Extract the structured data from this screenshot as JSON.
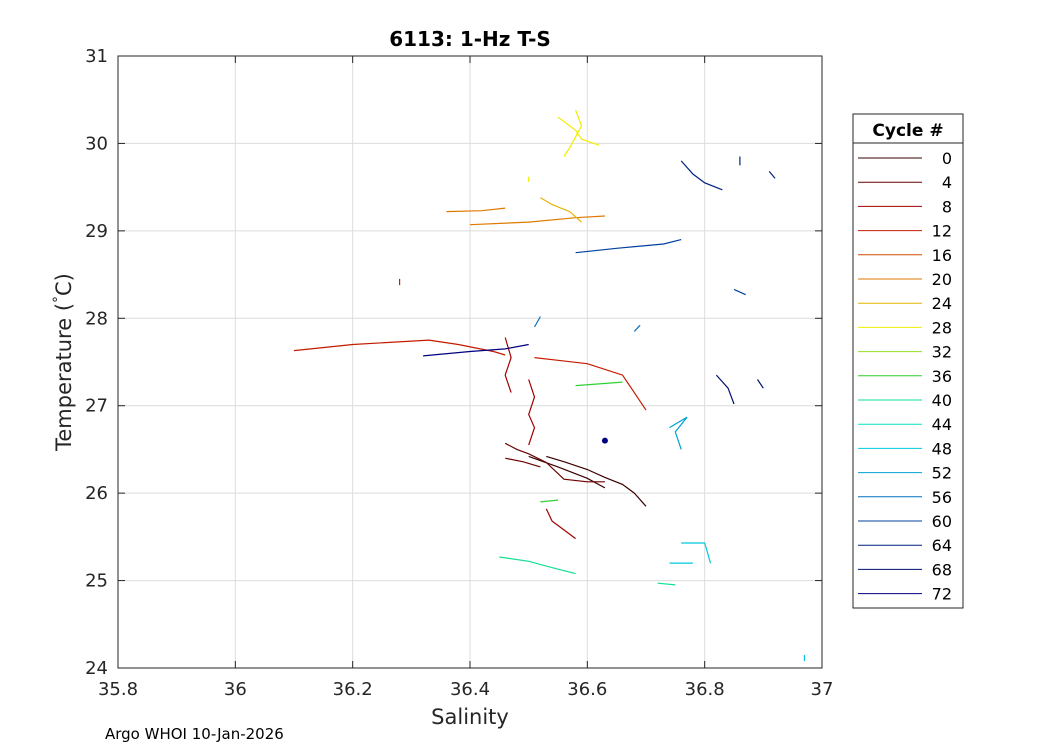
{
  "chart_data": {
    "type": "line",
    "title": "6113: 1-Hz T-S",
    "xlabel": "Salinity",
    "ylabel_main": "Temperature (",
    "ylabel_degree": "°",
    "ylabel_unit": "C)",
    "xlim": [
      35.8,
      37
    ],
    "ylim": [
      24,
      31
    ],
    "x_ticks": [
      35.8,
      36,
      36.2,
      36.4,
      36.6,
      36.8,
      37
    ],
    "x_tick_labels": [
      "35.8",
      "36",
      "36.2",
      "36.4",
      "36.6",
      "36.8",
      "37"
    ],
    "y_ticks": [
      24,
      25,
      26,
      27,
      28,
      29,
      30,
      31
    ],
    "y_tick_labels": [
      "24",
      "25",
      "26",
      "27",
      "28",
      "29",
      "30",
      "31"
    ],
    "grid": true,
    "legend": {
      "title": "Cycle #",
      "placement": "right",
      "entries": [
        {
          "label": "0",
          "color": "#3a0000"
        },
        {
          "label": "4",
          "color": "#6d0000"
        },
        {
          "label": "8",
          "color": "#a30000"
        },
        {
          "label": "12",
          "color": "#c41a00"
        },
        {
          "label": "16",
          "color": "#d24a00"
        },
        {
          "label": "20",
          "color": "#de7a00"
        },
        {
          "label": "24",
          "color": "#e3b500"
        },
        {
          "label": "28",
          "color": "#f0ee00"
        },
        {
          "label": "32",
          "color": "#90e020"
        },
        {
          "label": "36",
          "color": "#30d030"
        },
        {
          "label": "40",
          "color": "#10e090"
        },
        {
          "label": "44",
          "color": "#00e0c8"
        },
        {
          "label": "48",
          "color": "#00c8e0"
        },
        {
          "label": "52",
          "color": "#00a0d0"
        },
        {
          "label": "56",
          "color": "#0070c0"
        },
        {
          "label": "60",
          "color": "#0040a0"
        },
        {
          "label": "64",
          "color": "#002080"
        },
        {
          "label": "68",
          "color": "#001070"
        },
        {
          "label": "72",
          "color": "#000080"
        }
      ]
    },
    "series": [
      {
        "color": "#3a0000",
        "points": [
          [
            36.53,
            26.42
          ],
          [
            36.56,
            26.36
          ],
          [
            36.6,
            26.27
          ],
          [
            36.63,
            26.18
          ],
          [
            36.66,
            26.1
          ],
          [
            36.68,
            26.0
          ],
          [
            36.7,
            25.85
          ]
        ]
      },
      {
        "color": "#3a0000",
        "points": [
          [
            36.5,
            26.42
          ],
          [
            36.55,
            26.3
          ],
          [
            36.6,
            26.17
          ],
          [
            36.63,
            26.06
          ]
        ]
      },
      {
        "color": "#6d0000",
        "points": [
          [
            36.46,
            26.57
          ],
          [
            36.48,
            26.5
          ],
          [
            36.5,
            26.45
          ],
          [
            36.53,
            26.35
          ],
          [
            36.56,
            26.16
          ],
          [
            36.6,
            26.13
          ],
          [
            36.63,
            26.13
          ]
        ]
      },
      {
        "color": "#6d0000",
        "points": [
          [
            36.46,
            26.4
          ],
          [
            36.49,
            26.36
          ],
          [
            36.52,
            26.3
          ]
        ]
      },
      {
        "color": "#a30000",
        "points": [
          [
            36.5,
            27.3
          ],
          [
            36.51,
            27.1
          ],
          [
            36.5,
            26.9
          ],
          [
            36.51,
            26.75
          ],
          [
            36.5,
            26.55
          ]
        ]
      },
      {
        "color": "#a30000",
        "points": [
          [
            36.53,
            25.82
          ],
          [
            36.54,
            25.68
          ],
          [
            36.56,
            25.58
          ],
          [
            36.58,
            25.48
          ]
        ]
      },
      {
        "color": "#a30000",
        "points": [
          [
            36.46,
            27.78
          ],
          [
            36.47,
            27.55
          ],
          [
            36.46,
            27.35
          ],
          [
            36.47,
            27.15
          ]
        ]
      },
      {
        "color": "#c41a00",
        "points": [
          [
            36.28,
            28.45
          ],
          [
            36.28,
            28.38
          ]
        ]
      },
      {
        "color": "#c41a00",
        "points": [
          [
            36.1,
            27.63
          ],
          [
            36.2,
            27.7
          ],
          [
            36.33,
            27.75
          ],
          [
            36.38,
            27.7
          ],
          [
            36.44,
            27.62
          ],
          [
            36.46,
            27.58
          ]
        ]
      },
      {
        "color": "#c41a00",
        "points": [
          [
            36.51,
            27.55
          ],
          [
            36.55,
            27.52
          ],
          [
            36.6,
            27.48
          ],
          [
            36.66,
            27.35
          ],
          [
            36.68,
            27.15
          ],
          [
            36.7,
            26.95
          ]
        ]
      },
      {
        "color": "#de7a00",
        "points": [
          [
            36.36,
            29.22
          ],
          [
            36.42,
            29.23
          ],
          [
            36.46,
            29.26
          ]
        ]
      },
      {
        "color": "#de7a00",
        "points": [
          [
            36.4,
            29.07
          ],
          [
            36.5,
            29.1
          ],
          [
            36.58,
            29.15
          ],
          [
            36.63,
            29.17
          ]
        ]
      },
      {
        "color": "#e3b500",
        "points": [
          [
            36.52,
            29.38
          ],
          [
            36.54,
            29.3
          ],
          [
            36.57,
            29.22
          ],
          [
            36.59,
            29.1
          ]
        ]
      },
      {
        "color": "#f0ee00",
        "points": [
          [
            36.55,
            30.3
          ],
          [
            36.58,
            30.15
          ],
          [
            36.59,
            30.05
          ],
          [
            36.62,
            29.98
          ]
        ]
      },
      {
        "color": "#f0ee00",
        "points": [
          [
            36.58,
            30.38
          ],
          [
            36.59,
            30.2
          ],
          [
            36.57,
            29.95
          ],
          [
            36.56,
            29.85
          ]
        ]
      },
      {
        "color": "#f0ee00",
        "points": [
          [
            36.5,
            29.62
          ],
          [
            36.5,
            29.56
          ]
        ]
      },
      {
        "color": "#30d030",
        "points": [
          [
            36.58,
            27.23
          ],
          [
            36.62,
            27.25
          ],
          [
            36.66,
            27.27
          ]
        ]
      },
      {
        "color": "#30d030",
        "points": [
          [
            36.52,
            25.9
          ],
          [
            36.55,
            25.92
          ]
        ]
      },
      {
        "color": "#10e090",
        "points": [
          [
            36.45,
            25.27
          ],
          [
            36.5,
            25.22
          ],
          [
            36.55,
            25.13
          ],
          [
            36.58,
            25.08
          ]
        ]
      },
      {
        "color": "#10e090",
        "points": [
          [
            36.72,
            24.97
          ],
          [
            36.75,
            24.95
          ]
        ]
      },
      {
        "color": "#00c8e0",
        "points": [
          [
            36.76,
            25.43
          ],
          [
            36.8,
            25.43
          ],
          [
            36.81,
            25.2
          ]
        ]
      },
      {
        "color": "#00c8e0",
        "points": [
          [
            36.74,
            25.2
          ],
          [
            36.78,
            25.2
          ]
        ]
      },
      {
        "color": "#00c8e0",
        "points": [
          [
            36.97,
            24.15
          ],
          [
            36.97,
            24.08
          ]
        ]
      },
      {
        "color": "#00a0d0",
        "points": [
          [
            36.74,
            26.75
          ],
          [
            36.77,
            26.87
          ],
          [
            36.75,
            26.7
          ],
          [
            36.76,
            26.5
          ]
        ]
      },
      {
        "color": "#0070c0",
        "points": [
          [
            36.51,
            27.9
          ],
          [
            36.52,
            28.02
          ]
        ]
      },
      {
        "color": "#0070c0",
        "points": [
          [
            36.68,
            27.85
          ],
          [
            36.69,
            27.92
          ]
        ]
      },
      {
        "color": "#0040a0",
        "points": [
          [
            36.58,
            28.75
          ],
          [
            36.65,
            28.8
          ],
          [
            36.73,
            28.85
          ],
          [
            36.76,
            28.9
          ]
        ]
      },
      {
        "color": "#0040a0",
        "points": [
          [
            36.85,
            28.33
          ],
          [
            36.87,
            28.27
          ]
        ]
      },
      {
        "color": "#002080",
        "points": [
          [
            36.76,
            29.8
          ],
          [
            36.78,
            29.65
          ],
          [
            36.8,
            29.55
          ],
          [
            36.83,
            29.47
          ]
        ]
      },
      {
        "color": "#002080",
        "points": [
          [
            36.86,
            29.85
          ],
          [
            36.86,
            29.75
          ]
        ]
      },
      {
        "color": "#002080",
        "points": [
          [
            36.91,
            29.68
          ],
          [
            36.92,
            29.6
          ]
        ]
      },
      {
        "color": "#001070",
        "points": [
          [
            36.82,
            27.35
          ],
          [
            36.84,
            27.2
          ],
          [
            36.85,
            27.02
          ]
        ]
      },
      {
        "color": "#001070",
        "points": [
          [
            36.89,
            27.3
          ],
          [
            36.9,
            27.2
          ]
        ]
      },
      {
        "color": "#000080",
        "points": [
          [
            36.32,
            27.57
          ],
          [
            36.4,
            27.62
          ],
          [
            36.46,
            27.65
          ],
          [
            36.5,
            27.7
          ]
        ]
      },
      {
        "color": "#000080",
        "points": [
          [
            36.63,
            26.6
          ],
          [
            36.63,
            26.6
          ]
        ]
      }
    ]
  },
  "footer": {
    "text": "Argo WHOI 10-Jan-2026"
  }
}
